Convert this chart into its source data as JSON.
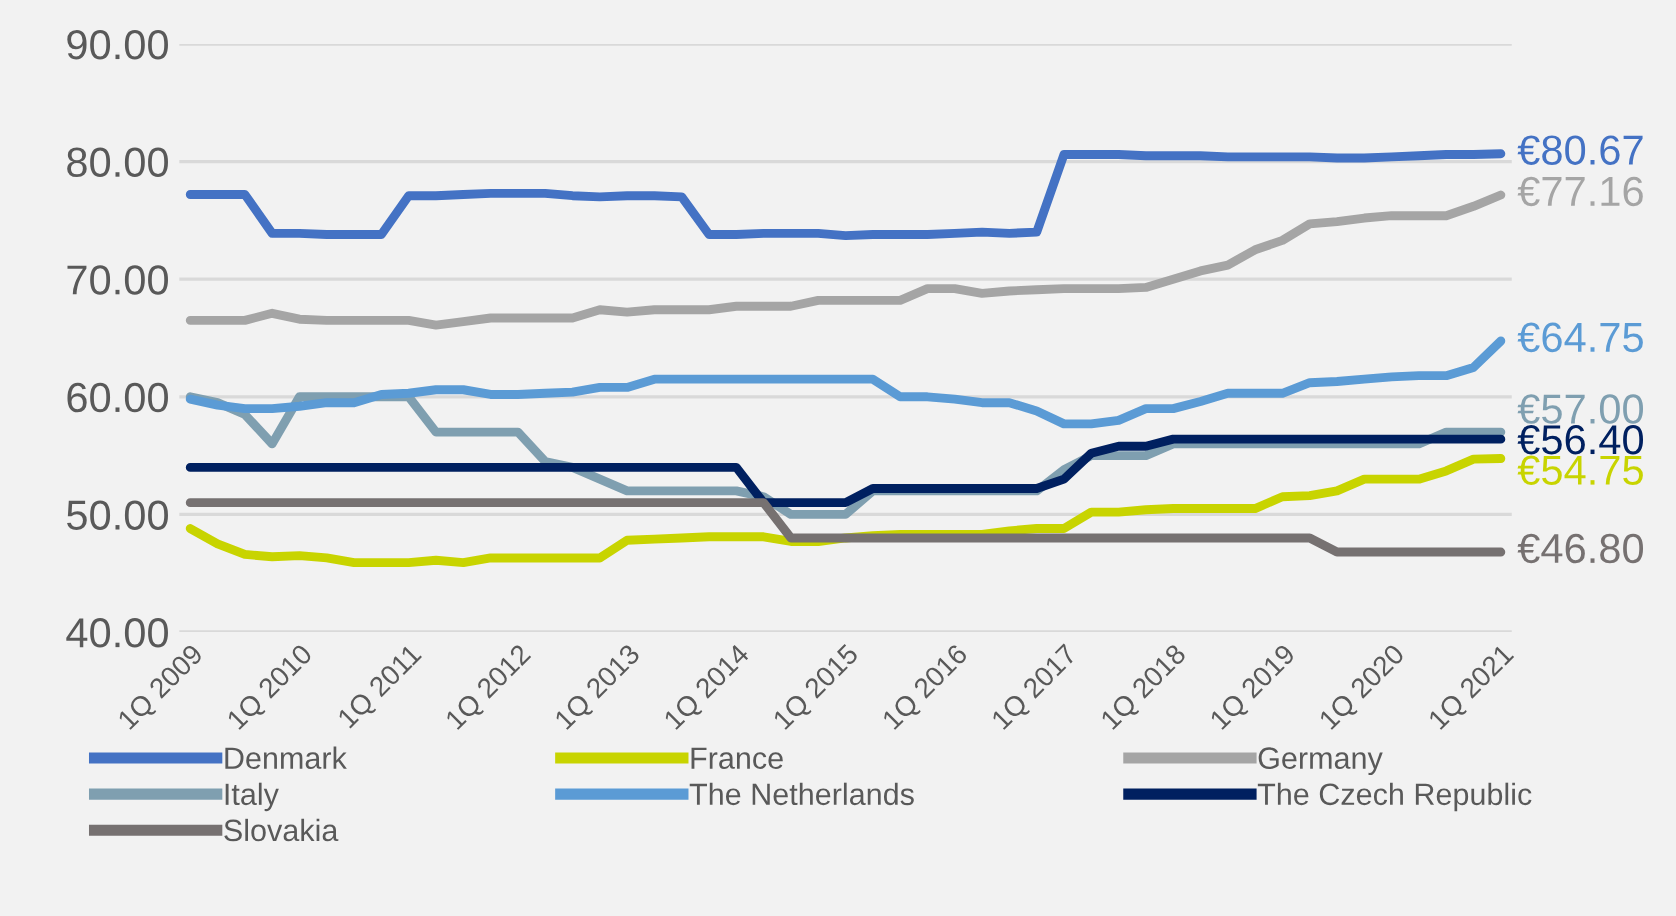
{
  "chart_data": {
    "type": "line",
    "categories": [
      "1Q 2009",
      null,
      null,
      null,
      "1Q 2010",
      null,
      null,
      null,
      "1Q 2011",
      null,
      null,
      null,
      "1Q 2012",
      null,
      null,
      null,
      "1Q 2013",
      null,
      null,
      null,
      "1Q 2014",
      null,
      null,
      null,
      "1Q 2015",
      null,
      null,
      null,
      "1Q 2016",
      null,
      null,
      null,
      "1Q 2017",
      null,
      null,
      null,
      "1Q 2018",
      null,
      null,
      null,
      "1Q 2019",
      null,
      null,
      null,
      "1Q 2020",
      null,
      null,
      null,
      "1Q 2021"
    ],
    "series": [
      {
        "name": "Denmark",
        "color": "#4472c4",
        "values": [
          77.2,
          77.2,
          77.2,
          73.9,
          73.9,
          73.8,
          73.8,
          73.8,
          77.1,
          77.1,
          77.2,
          77.3,
          77.3,
          77.3,
          77.1,
          77.0,
          77.1,
          77.1,
          77.0,
          73.8,
          73.8,
          73.9,
          73.9,
          73.9,
          73.7,
          73.8,
          73.8,
          73.8,
          73.9,
          74.0,
          73.9,
          74.0,
          80.6,
          80.6,
          80.6,
          80.5,
          80.5,
          80.5,
          80.4,
          80.4,
          80.4,
          80.4,
          80.3,
          80.3,
          80.4,
          80.5,
          80.6,
          80.6,
          80.67
        ],
        "value_labels": [
          null,
          null,
          null,
          null,
          null,
          null,
          null,
          null,
          null,
          null,
          null,
          null,
          null,
          null,
          null,
          null,
          null,
          null,
          null,
          null,
          null,
          null,
          null,
          null,
          null,
          null,
          null,
          null,
          null,
          null,
          null,
          null,
          null,
          null,
          null,
          null,
          null,
          null,
          null,
          null,
          null,
          null,
          null,
          null,
          null,
          null,
          null,
          null,
          "€80.67"
        ]
      },
      {
        "name": "France",
        "color": "#c8d400",
        "values": [
          48.8,
          47.5,
          46.6,
          46.4,
          46.5,
          46.3,
          45.9,
          45.9,
          45.9,
          46.1,
          45.9,
          46.3,
          46.3,
          46.3,
          46.3,
          46.3,
          47.8,
          47.9,
          48.0,
          48.1,
          48.1,
          48.1,
          47.7,
          47.7,
          48.0,
          48.2,
          48.3,
          48.3,
          48.3,
          48.3,
          48.6,
          48.8,
          48.8,
          50.2,
          50.2,
          50.4,
          50.5,
          50.5,
          50.5,
          50.5,
          51.5,
          51.6,
          52.0,
          53.0,
          53.0,
          53.0,
          53.7,
          54.7,
          54.75
        ],
        "value_labels": [
          null,
          null,
          null,
          null,
          null,
          null,
          null,
          null,
          null,
          null,
          null,
          null,
          null,
          null,
          null,
          null,
          null,
          null,
          null,
          null,
          null,
          null,
          null,
          null,
          null,
          null,
          null,
          null,
          null,
          null,
          null,
          null,
          null,
          null,
          null,
          null,
          null,
          null,
          null,
          null,
          null,
          null,
          null,
          null,
          null,
          null,
          null,
          null,
          "€54.75"
        ]
      },
      {
        "name": "Germany",
        "color": "#a5a5a5",
        "values": [
          66.5,
          66.5,
          66.5,
          67.1,
          66.6,
          66.5,
          66.5,
          66.5,
          66.5,
          66.1,
          66.4,
          66.7,
          66.7,
          66.7,
          66.7,
          67.4,
          67.2,
          67.4,
          67.4,
          67.4,
          67.7,
          67.7,
          67.7,
          68.2,
          68.2,
          68.2,
          68.2,
          69.2,
          69.2,
          68.8,
          69.0,
          69.1,
          69.2,
          69.2,
          69.2,
          69.3,
          70.0,
          70.7,
          71.2,
          72.5,
          73.3,
          74.7,
          74.9,
          75.2,
          75.4,
          75.4,
          75.4,
          76.2,
          77.16
        ],
        "value_labels": [
          null,
          null,
          null,
          null,
          null,
          null,
          null,
          null,
          null,
          null,
          null,
          null,
          null,
          null,
          null,
          null,
          null,
          null,
          null,
          null,
          null,
          null,
          null,
          null,
          null,
          null,
          null,
          null,
          null,
          null,
          null,
          null,
          null,
          null,
          null,
          null,
          null,
          null,
          null,
          null,
          null,
          null,
          null,
          null,
          null,
          null,
          null,
          null,
          "€77.16"
        ]
      },
      {
        "name": "Italy",
        "color": "#7f9fb0",
        "values": [
          60.0,
          59.5,
          58.5,
          56.0,
          60.0,
          60.0,
          60.0,
          60.0,
          60.0,
          57.0,
          57.0,
          57.0,
          57.0,
          54.5,
          54.0,
          53.0,
          52.0,
          52.0,
          52.0,
          52.0,
          52.0,
          51.5,
          50.0,
          50.0,
          50.0,
          52.0,
          52.0,
          52.0,
          52.0,
          52.0,
          52.0,
          52.0,
          53.8,
          55.0,
          55.0,
          55.0,
          56.0,
          56.0,
          56.0,
          56.0,
          56.0,
          56.0,
          56.0,
          56.0,
          56.0,
          56.0,
          57.0,
          57.0,
          57.0
        ],
        "value_labels": [
          null,
          null,
          null,
          null,
          null,
          null,
          null,
          null,
          null,
          null,
          null,
          null,
          null,
          null,
          null,
          null,
          null,
          null,
          null,
          null,
          null,
          null,
          null,
          null,
          null,
          null,
          null,
          null,
          null,
          null,
          null,
          null,
          null,
          null,
          null,
          null,
          null,
          null,
          null,
          null,
          null,
          null,
          null,
          null,
          null,
          null,
          null,
          null,
          "€57.00"
        ]
      },
      {
        "name": "The Netherlands",
        "color": "#5b9bd5",
        "values": [
          59.8,
          59.3,
          59.0,
          59.0,
          59.2,
          59.5,
          59.5,
          60.2,
          60.3,
          60.6,
          60.6,
          60.2,
          60.2,
          60.3,
          60.4,
          60.8,
          60.8,
          61.5,
          61.5,
          61.5,
          61.5,
          61.5,
          61.5,
          61.5,
          61.5,
          61.5,
          60.0,
          60.0,
          59.8,
          59.5,
          59.5,
          58.8,
          57.7,
          57.7,
          58.0,
          59.0,
          59.0,
          59.6,
          60.3,
          60.3,
          60.3,
          61.2,
          61.3,
          61.5,
          61.7,
          61.8,
          61.8,
          62.5,
          64.75
        ],
        "value_labels": [
          null,
          null,
          null,
          null,
          null,
          null,
          null,
          null,
          null,
          null,
          null,
          null,
          null,
          null,
          null,
          null,
          null,
          null,
          null,
          null,
          null,
          null,
          null,
          null,
          null,
          null,
          null,
          null,
          null,
          null,
          null,
          null,
          null,
          null,
          null,
          null,
          null,
          null,
          null,
          null,
          null,
          null,
          null,
          null,
          null,
          null,
          null,
          null,
          "€64.75"
        ]
      },
      {
        "name": "The Czech Republic",
        "color": "#002060",
        "values": [
          54.0,
          54.0,
          54.0,
          54.0,
          54.0,
          54.0,
          54.0,
          54.0,
          54.0,
          54.0,
          54.0,
          54.0,
          54.0,
          54.0,
          54.0,
          54.0,
          54.0,
          54.0,
          54.0,
          54.0,
          54.0,
          51.0,
          51.0,
          51.0,
          51.0,
          52.2,
          52.2,
          52.2,
          52.2,
          52.2,
          52.2,
          52.2,
          53.0,
          55.2,
          55.8,
          55.8,
          56.4,
          56.4,
          56.4,
          56.4,
          56.4,
          56.4,
          56.4,
          56.4,
          56.4,
          56.4,
          56.4,
          56.4,
          56.4
        ],
        "value_labels": [
          null,
          null,
          null,
          null,
          null,
          null,
          null,
          null,
          null,
          null,
          null,
          null,
          null,
          null,
          null,
          null,
          null,
          null,
          null,
          null,
          null,
          null,
          null,
          null,
          null,
          null,
          null,
          null,
          null,
          null,
          null,
          null,
          null,
          null,
          null,
          null,
          null,
          null,
          null,
          null,
          null,
          null,
          null,
          null,
          null,
          null,
          null,
          null,
          "€56.40"
        ]
      },
      {
        "name": "Slovakia",
        "color": "#767171",
        "values": [
          51.0,
          51.0,
          51.0,
          51.0,
          51.0,
          51.0,
          51.0,
          51.0,
          51.0,
          51.0,
          51.0,
          51.0,
          51.0,
          51.0,
          51.0,
          51.0,
          51.0,
          51.0,
          51.0,
          51.0,
          51.0,
          51.0,
          48.0,
          48.0,
          48.0,
          48.0,
          48.0,
          48.0,
          48.0,
          48.0,
          48.0,
          48.0,
          48.0,
          48.0,
          48.0,
          48.0,
          48.0,
          48.0,
          48.0,
          48.0,
          48.0,
          48.0,
          46.8,
          46.8,
          46.8,
          46.8,
          46.8,
          46.8,
          46.8
        ],
        "value_labels": [
          null,
          null,
          null,
          null,
          null,
          null,
          null,
          null,
          null,
          null,
          null,
          null,
          null,
          null,
          null,
          null,
          null,
          null,
          null,
          null,
          null,
          null,
          null,
          null,
          null,
          null,
          null,
          null,
          null,
          null,
          null,
          null,
          null,
          null,
          null,
          null,
          null,
          null,
          null,
          null,
          null,
          null,
          null,
          null,
          null,
          null,
          null,
          null,
          "€46.80"
        ]
      }
    ],
    "ylim": [
      40,
      90
    ],
    "yticks": [
      {
        "value": 40,
        "label": "40.00"
      },
      {
        "value": 50,
        "label": "50.00"
      },
      {
        "value": 60,
        "label": "60.00"
      },
      {
        "value": 70,
        "label": "70.00"
      },
      {
        "value": 80,
        "label": "80.00"
      },
      {
        "value": 90,
        "label": "90.00"
      }
    ],
    "grid": "y",
    "legend": "bottom",
    "marker": "none",
    "line_style": "solid"
  }
}
